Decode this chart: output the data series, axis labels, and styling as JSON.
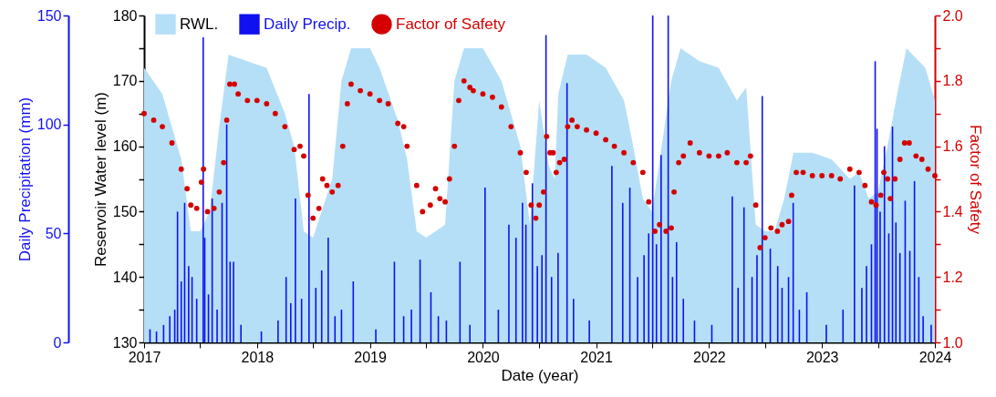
{
  "chart_data": {
    "type": "scatter",
    "xlabel": "Date (year)",
    "ylabel": "Reservoir Water level (m)",
    "y2label": "Factor of Safety",
    "y3label": "Daily Precipitation (mm)",
    "xlim": [
      "2017",
      "2024"
    ],
    "xticks": [
      {
        "value": "2017",
        "label": "2017"
      },
      {
        "value": "2017-07",
        "label": null
      },
      {
        "value": "2018",
        "label": "2018"
      },
      {
        "value": "2018-07",
        "label": null
      },
      {
        "value": "2019",
        "label": "2019"
      },
      {
        "value": "2019-07",
        "label": null
      },
      {
        "value": "2020",
        "label": "2020"
      },
      {
        "value": "2020-07",
        "label": null
      },
      {
        "value": "2021",
        "label": "2021"
      },
      {
        "value": "2021-07",
        "label": null
      },
      {
        "value": "2022",
        "label": "2022"
      },
      {
        "value": "2022-07",
        "label": null
      },
      {
        "value": "2023",
        "label": "2023"
      },
      {
        "value": "2023-07",
        "label": null
      },
      {
        "value": "2024",
        "label": "2024"
      }
    ],
    "ylim": [
      130,
      180
    ],
    "yticks": [
      130,
      {
        "value": 135,
        "label": null
      },
      140,
      {
        "value": 145,
        "label": null
      },
      150,
      {
        "value": 155,
        "label": null
      },
      160,
      {
        "value": 165,
        "label": null
      },
      170,
      {
        "value": 175,
        "label": null
      },
      180
    ],
    "y2lim": [
      1.0,
      2.0
    ],
    "y2ticks": [
      {
        "value": 1.0,
        "label": "1.0"
      },
      {
        "value": 1.1,
        "label": null
      },
      {
        "value": 1.2,
        "label": "1.2"
      },
      {
        "value": 1.3,
        "label": null
      },
      {
        "value": 1.4,
        "label": "1.4"
      },
      {
        "value": 1.5,
        "label": null
      },
      {
        "value": 1.6,
        "label": "1.6"
      },
      {
        "value": 1.7,
        "label": null
      },
      {
        "value": 1.8,
        "label": "1.8"
      },
      {
        "value": 1.9,
        "label": null
      },
      {
        "value": 2.0,
        "label": "2.0"
      }
    ],
    "y3lim": [
      0,
      150
    ],
    "y3ticks": [
      0,
      50,
      100,
      150
    ],
    "legend": "top",
    "grid": false,
    "series": [
      {
        "name": "RWL.",
        "type": "area",
        "color": "#b5dff7",
        "x": [
          "2017-01",
          "2017-03",
          "2017-05",
          "2017-06",
          "2017-07",
          "2017-08",
          "2017-09",
          "2017-10",
          "2017-12",
          "2018-02",
          "2018-04",
          "2018-05",
          "2018-06",
          "2018-07",
          "2018-09",
          "2018-10",
          "2018-11",
          "2019-01",
          "2019-02",
          "2019-04",
          "2019-05",
          "2019-06",
          "2019-07",
          "2019-08",
          "2019-09",
          "2019-10",
          "2019-11",
          "2020-01",
          "2020-03",
          "2020-05",
          "2020-06",
          "2020-07",
          "2020-08",
          "2020-08-20",
          "2020-09",
          "2020-10",
          "2020-12",
          "2021-02",
          "2021-04",
          "2021-05",
          "2021-06",
          "2021-07",
          "2021-08",
          "2021-09",
          "2021-10",
          "2021-12",
          "2022-02",
          "2022-04",
          "2022-05",
          "2022-06",
          "2022-07",
          "2022-08",
          "2022-09",
          "2022-10",
          "2022-12",
          "2023-02",
          "2023-04",
          "2023-05",
          "2023-06",
          "2023-07",
          "2023-08",
          "2023-09",
          "2023-10",
          "2023-12",
          "2024-01"
        ],
        "values": [
          172,
          168,
          158,
          147,
          147,
          150,
          163,
          174,
          173,
          172,
          165,
          160,
          147,
          146,
          155,
          170,
          175,
          175,
          172,
          164,
          158,
          147,
          146,
          147,
          148,
          170,
          175,
          175,
          170,
          160,
          148,
          167,
          157,
          155,
          168,
          174,
          174,
          172,
          167,
          160,
          152,
          150,
          160,
          170,
          175,
          173,
          172,
          167,
          169,
          148,
          147,
          147,
          152,
          159,
          159,
          158,
          155,
          156,
          152,
          153,
          160,
          168,
          175,
          172,
          167
        ]
      },
      {
        "name": "Daily Precip.",
        "type": "bar",
        "axis": "y3",
        "color": "#1010f0",
        "x": [
          "2017-01-20",
          "2017-02-10",
          "2017-03-05",
          "2017-03-25",
          "2017-04-10",
          "2017-04-19",
          "2017-05-01",
          "2017-05-12",
          "2017-05-25",
          "2017-06-05",
          "2017-06-20",
          "2017-07-11",
          "2017-07-16",
          "2017-07-28",
          "2017-08-09",
          "2017-08-25",
          "2017-09-10",
          "2017-09-25",
          "2017-10-06",
          "2017-10-17",
          "2017-11-10",
          "2018-01-15",
          "2018-03-10",
          "2018-04-05",
          "2018-04-20",
          "2018-05-05",
          "2018-05-25",
          "2018-06-18",
          "2018-07-10",
          "2018-07-29",
          "2018-08-19",
          "2018-09-10",
          "2018-10-01",
          "2018-11-08",
          "2019-01-20",
          "2019-03-21",
          "2019-04-20",
          "2019-05-15",
          "2019-06-12",
          "2019-07-17",
          "2019-08-10",
          "2019-09-05",
          "2019-10-19",
          "2019-11-20",
          "2020-01-08",
          "2020-02-20",
          "2020-03-25",
          "2020-04-17",
          "2020-05-08",
          "2020-05-19",
          "2020-06-09",
          "2020-06-25",
          "2020-07-10",
          "2020-07-23",
          "2020-08-10",
          "2020-08-31",
          "2020-09-29",
          "2020-10-20",
          "2020-12-10",
          "2021-02-21",
          "2021-03-28",
          "2021-04-20",
          "2021-05-15",
          "2021-06-05",
          "2021-06-20",
          "2021-07-03",
          "2021-07-15",
          "2021-07-30",
          "2021-08-22",
          "2021-09-05",
          "2021-09-18",
          "2021-10-10",
          "2021-11-15",
          "2022-01-10",
          "2022-03-17",
          "2022-04-05",
          "2022-04-24",
          "2022-05-20",
          "2022-06-05",
          "2022-06-22",
          "2022-07-18",
          "2022-08-11",
          "2022-08-25",
          "2022-09-15",
          "2022-09-30",
          "2022-10-20",
          "2022-11-13",
          "2023-01-15",
          "2023-03-10",
          "2023-04-16",
          "2023-05-10",
          "2023-05-25",
          "2023-06-10",
          "2023-06-22",
          "2023-06-28",
          "2023-07-08",
          "2023-07-22",
          "2023-08-05",
          "2023-08-17",
          "2023-08-28",
          "2023-09-10",
          "2023-09-27",
          "2023-10-12",
          "2023-10-27",
          "2023-11-10",
          "2023-11-24",
          "2023-12-20"
        ],
        "values": [
          6,
          5,
          8,
          12,
          15,
          60,
          28,
          64,
          35,
          30,
          20,
          140,
          48,
          22,
          66,
          15,
          64,
          100,
          37,
          37,
          8,
          5,
          10,
          30,
          18,
          66,
          20,
          114,
          25,
          33,
          48,
          12,
          15,
          28,
          6,
          37,
          12,
          15,
          38,
          23,
          12,
          10,
          37,
          8,
          71,
          15,
          54,
          48,
          64,
          54,
          73,
          35,
          40,
          141,
          30,
          41,
          119,
          20,
          10,
          81,
          64,
          71,
          30,
          40,
          50,
          150,
          45,
          86,
          150,
          30,
          46,
          20,
          10,
          8,
          67,
          25,
          62,
          30,
          40,
          113,
          43,
          35,
          25,
          30,
          64,
          15,
          23,
          8,
          15,
          72,
          25,
          35,
          45,
          129,
          98,
          60,
          90,
          50,
          99,
          55,
          41,
          65,
          42,
          74,
          30,
          12,
          8
        ]
      },
      {
        "name": "Factor of Safety",
        "marker": "circle",
        "axis": "y2",
        "color": "#d40000",
        "x": [
          "2017-01",
          "2017-02",
          "2017-03",
          "2017-04",
          "2017-05",
          "2017-05-20",
          "2017-06",
          "2017-06-20",
          "2017-07-05",
          "2017-07-12",
          "2017-07-25",
          "2017-08-15",
          "2017-09-01",
          "2017-09-15",
          "2017-09-25",
          "2017-10-05",
          "2017-10-20",
          "2017-11",
          "2017-12",
          "2018-01",
          "2018-02",
          "2018-03",
          "2018-04",
          "2018-05",
          "2018-05-20",
          "2018-06-01",
          "2018-06-15",
          "2018-07-01",
          "2018-07-20",
          "2018-08-01",
          "2018-08-15",
          "2018-09-01",
          "2018-09-20",
          "2018-10-05",
          "2018-10-20",
          "2018-11-01",
          "2018-12",
          "2019-01",
          "2019-02",
          "2019-03",
          "2019-04",
          "2019-04-20",
          "2019-05",
          "2019-06",
          "2019-06-20",
          "2019-07-15",
          "2019-08-01",
          "2019-08-15",
          "2019-09-01",
          "2019-09-15",
          "2019-10-01",
          "2019-10-15",
          "2019-11-01",
          "2019-11-20",
          "2019-12",
          "2020-01",
          "2020-02",
          "2020-03",
          "2020-04",
          "2020-05",
          "2020-05-20",
          "2020-06-05",
          "2020-06-20",
          "2020-07-01",
          "2020-07-15",
          "2020-07-25",
          "2020-08-05",
          "2020-08-15",
          "2020-08-25",
          "2020-09-05",
          "2020-09-20",
          "2020-10-01",
          "2020-10-15",
          "2020-11",
          "2020-12",
          "2021-01",
          "2021-02",
          "2021-03",
          "2021-04",
          "2021-05",
          "2021-06",
          "2021-06-20",
          "2021-07-10",
          "2021-07-25",
          "2021-08-15",
          "2021-09-01",
          "2021-09-10",
          "2021-09-25",
          "2021-10-10",
          "2021-11-01",
          "2021-12",
          "2022-01",
          "2022-02",
          "2022-03",
          "2022-04",
          "2022-05-01",
          "2022-05-15",
          "2022-06-01",
          "2022-06-15",
          "2022-07-01",
          "2022-07-20",
          "2022-08-10",
          "2022-08-25",
          "2022-09-15",
          "2022-09-25",
          "2022-10-10",
          "2022-11-01",
          "2022-12",
          "2023-01",
          "2023-02",
          "2023-03",
          "2023-04",
          "2023-05",
          "2023-05-20",
          "2023-06-10",
          "2023-06-25",
          "2023-07-10",
          "2023-07-20",
          "2023-08-01",
          "2023-08-10",
          "2023-08-25",
          "2023-09-10",
          "2023-09-25",
          "2023-10-10",
          "2023-11-01",
          "2023-11-20",
          "2023-12-10",
          "2024-01-01"
        ],
        "values": [
          1.7,
          1.68,
          1.66,
          1.61,
          1.53,
          1.47,
          1.42,
          1.41,
          1.49,
          1.53,
          1.4,
          1.41,
          1.46,
          1.55,
          1.68,
          1.79,
          1.79,
          1.76,
          1.74,
          1.74,
          1.73,
          1.7,
          1.66,
          1.59,
          1.6,
          1.57,
          1.45,
          1.38,
          1.41,
          1.5,
          1.48,
          1.46,
          1.48,
          1.6,
          1.73,
          1.79,
          1.77,
          1.76,
          1.74,
          1.73,
          1.67,
          1.66,
          1.6,
          1.48,
          1.4,
          1.42,
          1.47,
          1.44,
          1.43,
          1.5,
          1.6,
          1.74,
          1.8,
          1.78,
          1.77,
          1.76,
          1.75,
          1.72,
          1.66,
          1.58,
          1.52,
          1.42,
          1.38,
          1.42,
          1.46,
          1.63,
          1.58,
          1.58,
          1.52,
          1.55,
          1.56,
          1.66,
          1.68,
          1.66,
          1.65,
          1.64,
          1.62,
          1.6,
          1.58,
          1.55,
          1.52,
          1.43,
          1.34,
          1.36,
          1.34,
          1.35,
          1.46,
          1.55,
          1.57,
          1.61,
          1.58,
          1.57,
          1.57,
          1.58,
          1.55,
          1.55,
          1.57,
          1.42,
          1.29,
          1.32,
          1.35,
          1.34,
          1.36,
          1.37,
          1.45,
          1.52,
          1.52,
          1.51,
          1.51,
          1.51,
          1.5,
          1.53,
          1.52,
          1.48,
          1.43,
          1.42,
          1.45,
          1.52,
          1.5,
          1.44,
          1.5,
          1.56,
          1.61,
          1.61,
          1.57,
          1.56,
          1.53,
          1.51
        ]
      }
    ]
  }
}
